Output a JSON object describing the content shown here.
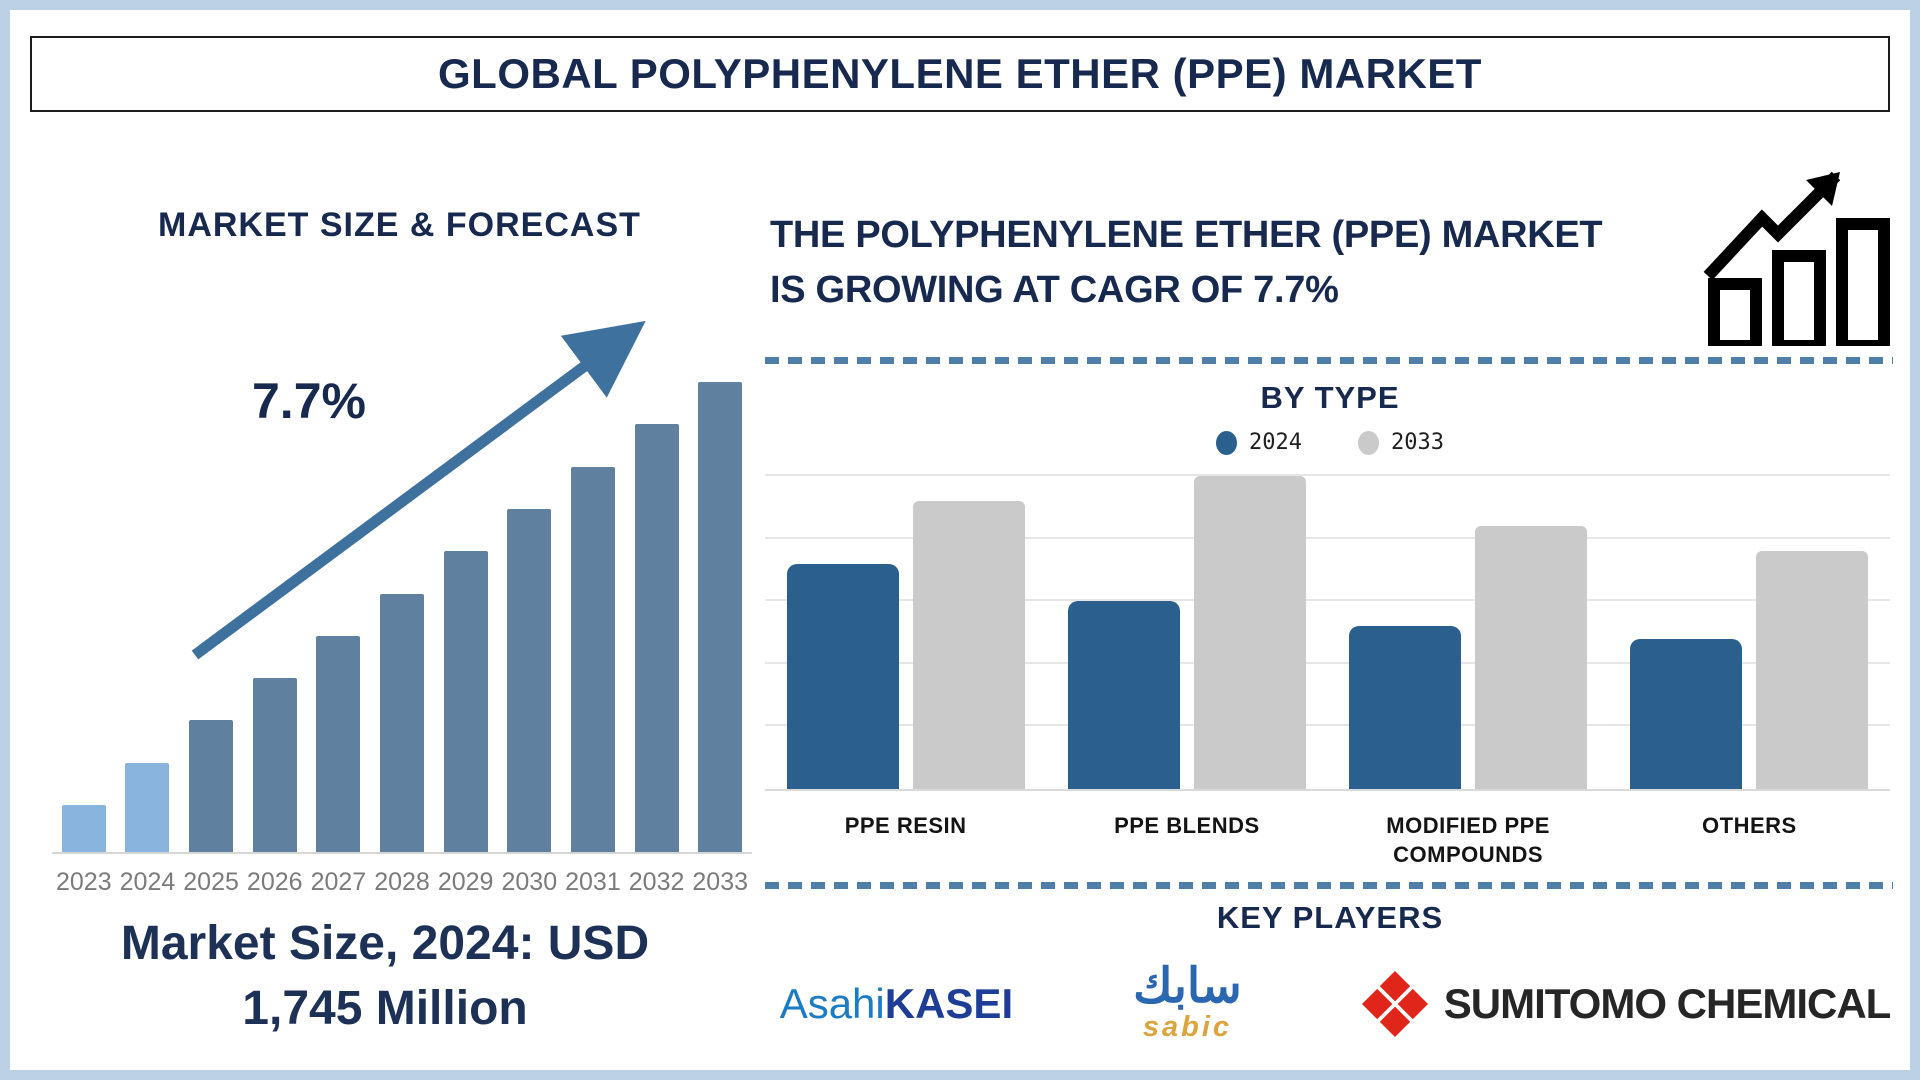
{
  "page": {
    "title": "GLOBAL POLYPHENYLENE ETHER (PPE) MARKET",
    "accent_colors": {
      "navy": "#17294e",
      "frame_blue": "#bcd1e6",
      "dashed_blue": "#4f7ea8",
      "arrow_blue": "#3f719e"
    }
  },
  "left_panel": {
    "caption_line1": "Market Size, 2024: USD",
    "caption_line2": "1,745 Million"
  },
  "right_panel": {
    "headline_line1": "THE POLYPHENYLENE ETHER (PPE) MARKET",
    "headline_line2": "IS GROWING AT CAGR OF 7.7%",
    "growth_icon": "bar-chart-rising-arrow-icon",
    "key_players": {
      "title": "KEY PLAYERS",
      "players": [
        {
          "name": "Asahi Kasei",
          "wordmark_part1": "Asahi",
          "wordmark_part2": "KASEI",
          "color1": "#1a7cc4",
          "color2": "#1d3d96"
        },
        {
          "name": "SABIC",
          "arabic": "سابك",
          "latin": "sabic",
          "color_arabic": "#2a67b0",
          "color_latin": "#dca43e"
        },
        {
          "name": "Sumitomo Chemical",
          "wordmark": "SUMITOMO CHEMICAL",
          "mark_color": "#e0251b",
          "text_color": "#262626"
        }
      ]
    }
  },
  "chart_data": [
    {
      "type": "bar",
      "title": "MARKET SIZE & FORECAST",
      "annotation": "7.7%",
      "categories": [
        "2023",
        "2024",
        "2025",
        "2026",
        "2027",
        "2028",
        "2029",
        "2030",
        "2031",
        "2032",
        "2033"
      ],
      "values_relative_pct": [
        10,
        19,
        28,
        37,
        46,
        55,
        64,
        73,
        82,
        91,
        100
      ],
      "scale_note": "no y-axis shown; heights illustrative, 2024 = USD 1,745 Million, CAGR 7.7%",
      "highlight_count": 2,
      "highlight_color": "#88b4de",
      "base_color": "#60809f",
      "axis_label_color": "#7b7b7b",
      "grid": false,
      "legend_position": "none"
    },
    {
      "type": "bar",
      "title": "BY TYPE",
      "categories": [
        "PPE RESIN",
        "PPE BLENDS",
        "MODIFIED PPE COMPOUNDS",
        "OTHERS"
      ],
      "series": [
        {
          "name": "2024",
          "color": "#2a5f8e",
          "values_relative_pct": [
            72,
            60,
            52,
            48
          ]
        },
        {
          "name": "2033",
          "color": "#cacaca",
          "values_relative_pct": [
            92,
            100,
            84,
            76
          ]
        }
      ],
      "scale_note": "no y-axis shown; heights relative, 100 = tallest bar (PPE Blends 2033)",
      "grid": true,
      "gridlines": 6,
      "legend_position": "top"
    }
  ]
}
